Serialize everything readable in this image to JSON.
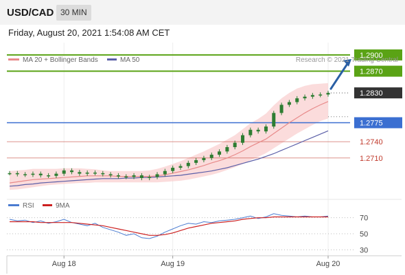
{
  "header": {
    "symbol": "USD/CAD",
    "interval": "30 MIN"
  },
  "datetime": "Friday, August 20, 2021 1:54:08 AM CET",
  "colors": {
    "resistance": "#5aa315",
    "pivot": "#3b6fd1",
    "support": "#c0392b",
    "ma20": "#e88a8a",
    "ma50": "#5b5fa8",
    "bollinger": "#f9d0d0",
    "candle": "#2e7d32",
    "rsi": "#4a7bd0",
    "rsi_ma": "#cc1f1f",
    "arrow": "#2a5fa5"
  },
  "chart_data": [
    {
      "type": "line",
      "title": "",
      "legend": [
        "MA 20 + Bollinger Bands",
        "MA 50"
      ],
      "legend_position": "top-left",
      "copyright": "Research © 2021 Trading Central",
      "x_ticks": [
        "Aug 18",
        "Aug 19",
        "Aug 20"
      ],
      "ylim": [
        1.264,
        1.291
      ],
      "price": [
        1.2682,
        1.268,
        1.2679,
        1.2681,
        1.2678,
        1.2677,
        1.2681,
        1.2687,
        1.2684,
        1.2681,
        1.2683,
        1.2682,
        1.268,
        1.2678,
        1.2676,
        1.2675,
        1.2678,
        1.2673,
        1.2675,
        1.268,
        1.2686,
        1.2692,
        1.2695,
        1.2701,
        1.2706,
        1.271,
        1.2716,
        1.2722,
        1.273,
        1.2738,
        1.2752,
        1.2762,
        1.2759,
        1.2768,
        1.2793,
        1.2808,
        1.2813,
        1.282,
        1.2823,
        1.2826,
        1.2827,
        1.283
      ],
      "ma20": [
        1.2664,
        1.2666,
        1.2668,
        1.267,
        1.2671,
        1.2672,
        1.2673,
        1.2674,
        1.2675,
        1.2676,
        1.2677,
        1.2677,
        1.2677,
        1.2677,
        1.2676,
        1.2676,
        1.2676,
        1.2676,
        1.2676,
        1.2677,
        1.2679,
        1.2682,
        1.2685,
        1.2688,
        1.2692,
        1.2696,
        1.2701,
        1.2705,
        1.271,
        1.2716,
        1.2723,
        1.2731,
        1.2738,
        1.2745,
        1.2755,
        1.2765,
        1.2775,
        1.2784,
        1.2793,
        1.2801,
        1.2808,
        1.2814
      ],
      "bb_upper": [
        1.2686,
        1.2687,
        1.2688,
        1.269,
        1.269,
        1.269,
        1.269,
        1.2691,
        1.2691,
        1.2691,
        1.269,
        1.2689,
        1.2687,
        1.2686,
        1.2686,
        1.2686,
        1.2686,
        1.2686,
        1.2687,
        1.269,
        1.2694,
        1.2699,
        1.2704,
        1.271,
        1.2716,
        1.2722,
        1.2729,
        1.2736,
        1.2744,
        1.2752,
        1.2763,
        1.2774,
        1.2782,
        1.2792,
        1.2807,
        1.282,
        1.283,
        1.2838,
        1.2843,
        1.2846,
        1.2847,
        1.2848
      ],
      "bb_lower": [
        1.2651,
        1.2652,
        1.2654,
        1.2656,
        1.2658,
        1.266,
        1.2661,
        1.2662,
        1.2663,
        1.2664,
        1.2664,
        1.2665,
        1.2665,
        1.2665,
        1.2665,
        1.2665,
        1.2665,
        1.2665,
        1.2665,
        1.2665,
        1.2666,
        1.2667,
        1.2668,
        1.267,
        1.2673,
        1.2676,
        1.2679,
        1.2683,
        1.2688,
        1.2693,
        1.2699,
        1.2706,
        1.2712,
        1.2719,
        1.2728,
        1.2737,
        1.2746,
        1.2755,
        1.2763,
        1.2771,
        1.2778,
        1.2783
      ],
      "ma50": [
        1.2658,
        1.2659,
        1.2661,
        1.2662,
        1.2664,
        1.2665,
        1.2666,
        1.2667,
        1.2668,
        1.2669,
        1.267,
        1.2671,
        1.2672,
        1.2672,
        1.2672,
        1.2673,
        1.2673,
        1.2674,
        1.2674,
        1.2675,
        1.2676,
        1.2677,
        1.2678,
        1.268,
        1.2682,
        1.2684,
        1.2686,
        1.2689,
        1.2692,
        1.2696,
        1.27,
        1.2704,
        1.2708,
        1.2713,
        1.2718,
        1.2724,
        1.273,
        1.2736,
        1.2742,
        1.2748,
        1.2754,
        1.276
      ],
      "levels": [
        {
          "value": 1.29,
          "label": "1.2900",
          "kind": "resistance"
        },
        {
          "value": 1.287,
          "label": "1.2870",
          "kind": "resistance"
        },
        {
          "value": 1.283,
          "label": "1.2830",
          "kind": "last"
        },
        {
          "value": 1.2775,
          "label": "1.2775",
          "kind": "pivot"
        },
        {
          "value": 1.274,
          "label": "1.2740",
          "kind": "support"
        },
        {
          "value": 1.271,
          "label": "1.2710",
          "kind": "support"
        }
      ],
      "annotation": "arrow pointing up toward 1.2900"
    },
    {
      "type": "line",
      "title": "",
      "legend": [
        "RSI",
        "9MA"
      ],
      "legend_position": "top-left",
      "ylim": [
        20,
        80
      ],
      "y_ticks": [
        30,
        50,
        70
      ],
      "rsi": [
        68,
        66,
        67,
        64,
        66,
        63,
        65,
        68,
        64,
        62,
        60,
        63,
        58,
        55,
        52,
        48,
        50,
        45,
        44,
        47,
        52,
        56,
        60,
        63,
        62,
        65,
        64,
        66,
        67,
        68,
        70,
        72,
        69,
        71,
        75,
        73,
        72,
        71,
        72,
        71,
        71,
        72
      ],
      "rsi_ma": [
        65,
        65,
        65,
        65,
        64,
        64,
        64,
        64,
        64,
        63,
        62,
        61,
        60,
        58,
        56,
        54,
        52,
        50,
        48,
        48,
        49,
        51,
        54,
        57,
        59,
        61,
        63,
        64,
        65,
        66,
        68,
        69,
        70,
        70,
        71,
        71,
        71,
        71,
        71,
        71,
        71,
        71
      ]
    }
  ]
}
